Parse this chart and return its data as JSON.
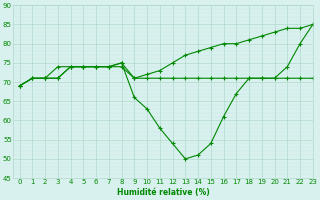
{
  "line1_flat": {
    "x": [
      0,
      1,
      2,
      3,
      4,
      5,
      6,
      7,
      8,
      9,
      10,
      11,
      12,
      13,
      14,
      15,
      16,
      17,
      18,
      19,
      20,
      21,
      22,
      23
    ],
    "y": [
      69,
      71,
      71,
      71,
      74,
      74,
      74,
      74,
      74,
      71,
      71,
      71,
      71,
      71,
      71,
      71,
      71,
      71,
      71,
      71,
      71,
      71,
      71,
      71
    ]
  },
  "line2_dip": {
    "x": [
      0,
      1,
      2,
      3,
      4,
      5,
      6,
      7,
      8,
      9,
      10,
      11,
      12,
      13,
      14,
      15,
      16,
      17,
      18,
      19,
      20,
      21,
      22,
      23
    ],
    "y": [
      69,
      71,
      71,
      71,
      74,
      74,
      74,
      74,
      75,
      66,
      63,
      58,
      54,
      50,
      51,
      54,
      61,
      67,
      71,
      71,
      71,
      74,
      80,
      85
    ]
  },
  "line3_rise": {
    "x": [
      0,
      1,
      2,
      3,
      4,
      5,
      6,
      7,
      8,
      9,
      10,
      11,
      12,
      13,
      14,
      15,
      16,
      17,
      18,
      19,
      20,
      21,
      22,
      23
    ],
    "y": [
      69,
      71,
      71,
      74,
      74,
      74,
      74,
      74,
      75,
      71,
      72,
      73,
      75,
      77,
      78,
      79,
      80,
      80,
      81,
      82,
      83,
      84,
      84,
      85
    ]
  },
  "color": "#008800",
  "bg_color": "#d8f0ee",
  "grid_major_color": "#b0d8cc",
  "grid_minor_color": "#c8e8e0",
  "ylim": [
    45,
    90
  ],
  "xlim": [
    -0.5,
    23
  ],
  "yticks": [
    45,
    50,
    55,
    60,
    65,
    70,
    75,
    80,
    85,
    90
  ],
  "xticks": [
    0,
    1,
    2,
    3,
    4,
    5,
    6,
    7,
    8,
    9,
    10,
    11,
    12,
    13,
    14,
    15,
    16,
    17,
    18,
    19,
    20,
    21,
    22,
    23
  ],
  "xlabel": "Humidité relative (%)",
  "marker": "+",
  "markersize": 3.5,
  "linewidth": 0.8,
  "tick_fontsize": 5.0,
  "xlabel_fontsize": 5.5
}
